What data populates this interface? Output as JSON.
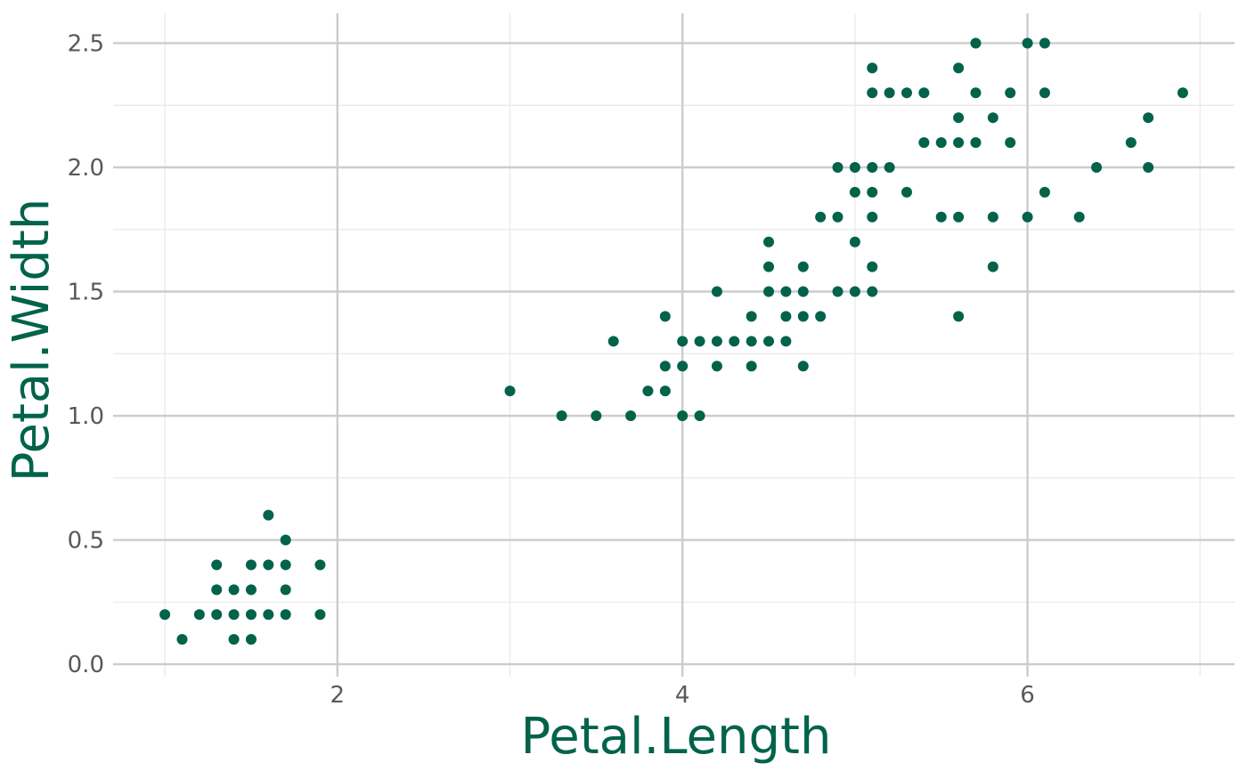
{
  "chart_data": {
    "type": "scatter",
    "xlabel": "Petal.Length",
    "ylabel": "Petal.Width",
    "xlim": [
      0.7,
      7.2
    ],
    "ylim": [
      -0.05,
      2.62
    ],
    "x_ticks": [
      2,
      4,
      6
    ],
    "x_tick_labels": [
      "2",
      "4",
      "6"
    ],
    "x_minor_ticks": [
      1,
      3,
      5,
      7
    ],
    "y_ticks": [
      0.0,
      0.5,
      1.0,
      1.5,
      2.0,
      2.5
    ],
    "y_tick_labels": [
      "0.0",
      "0.5",
      "1.0",
      "1.5",
      "2.0",
      "2.5"
    ],
    "y_minor_ticks": [
      0.25,
      0.75,
      1.25,
      1.75,
      2.25
    ],
    "grid": true,
    "legend": "none",
    "colors": {
      "points": "#02634a",
      "axis_title": "#02634a",
      "tick_label": "#595959",
      "major_grid": "#cccccc",
      "minor_grid": "#e8e8e8"
    },
    "points": [
      [
        1.0,
        0.2
      ],
      [
        1.1,
        0.1
      ],
      [
        1.2,
        0.2
      ],
      [
        1.3,
        0.2
      ],
      [
        1.3,
        0.3
      ],
      [
        1.3,
        0.4
      ],
      [
        1.4,
        0.1
      ],
      [
        1.4,
        0.2
      ],
      [
        1.4,
        0.3
      ],
      [
        1.5,
        0.1
      ],
      [
        1.5,
        0.2
      ],
      [
        1.5,
        0.3
      ],
      [
        1.5,
        0.4
      ],
      [
        1.6,
        0.2
      ],
      [
        1.6,
        0.4
      ],
      [
        1.6,
        0.6
      ],
      [
        1.7,
        0.2
      ],
      [
        1.7,
        0.3
      ],
      [
        1.7,
        0.4
      ],
      [
        1.7,
        0.5
      ],
      [
        1.9,
        0.2
      ],
      [
        1.9,
        0.4
      ],
      [
        3.0,
        1.1
      ],
      [
        3.3,
        1.0
      ],
      [
        3.5,
        1.0
      ],
      [
        3.6,
        1.3
      ],
      [
        3.7,
        1.0
      ],
      [
        3.8,
        1.1
      ],
      [
        3.9,
        1.1
      ],
      [
        3.9,
        1.2
      ],
      [
        3.9,
        1.4
      ],
      [
        4.0,
        1.0
      ],
      [
        4.0,
        1.2
      ],
      [
        4.0,
        1.3
      ],
      [
        4.1,
        1.0
      ],
      [
        4.1,
        1.3
      ],
      [
        4.2,
        1.2
      ],
      [
        4.2,
        1.3
      ],
      [
        4.2,
        1.5
      ],
      [
        4.3,
        1.3
      ],
      [
        4.4,
        1.2
      ],
      [
        4.4,
        1.3
      ],
      [
        4.4,
        1.4
      ],
      [
        4.5,
        1.3
      ],
      [
        4.5,
        1.5
      ],
      [
        4.5,
        1.6
      ],
      [
        4.5,
        1.7
      ],
      [
        4.6,
        1.3
      ],
      [
        4.6,
        1.4
      ],
      [
        4.6,
        1.5
      ],
      [
        4.7,
        1.2
      ],
      [
        4.7,
        1.4
      ],
      [
        4.7,
        1.5
      ],
      [
        4.7,
        1.6
      ],
      [
        4.8,
        1.4
      ],
      [
        4.8,
        1.8
      ],
      [
        4.9,
        1.5
      ],
      [
        4.9,
        1.8
      ],
      [
        4.9,
        2.0
      ],
      [
        5.0,
        1.5
      ],
      [
        5.0,
        1.7
      ],
      [
        5.0,
        1.9
      ],
      [
        5.0,
        2.0
      ],
      [
        5.1,
        1.5
      ],
      [
        5.1,
        1.6
      ],
      [
        5.1,
        1.8
      ],
      [
        5.1,
        1.9
      ],
      [
        5.1,
        2.0
      ],
      [
        5.1,
        2.3
      ],
      [
        5.1,
        2.4
      ],
      [
        5.2,
        2.0
      ],
      [
        5.2,
        2.3
      ],
      [
        5.3,
        1.9
      ],
      [
        5.3,
        2.3
      ],
      [
        5.4,
        2.1
      ],
      [
        5.4,
        2.3
      ],
      [
        5.5,
        1.8
      ],
      [
        5.5,
        2.1
      ],
      [
        5.6,
        1.4
      ],
      [
        5.6,
        1.8
      ],
      [
        5.6,
        2.1
      ],
      [
        5.6,
        2.2
      ],
      [
        5.6,
        2.4
      ],
      [
        5.7,
        2.1
      ],
      [
        5.7,
        2.3
      ],
      [
        5.7,
        2.5
      ],
      [
        5.8,
        1.6
      ],
      [
        5.8,
        1.8
      ],
      [
        5.8,
        2.2
      ],
      [
        5.9,
        2.1
      ],
      [
        5.9,
        2.3
      ],
      [
        6.0,
        1.8
      ],
      [
        6.0,
        2.5
      ],
      [
        6.1,
        1.9
      ],
      [
        6.1,
        2.3
      ],
      [
        6.1,
        2.5
      ],
      [
        6.3,
        1.8
      ],
      [
        6.4,
        2.0
      ],
      [
        6.6,
        2.1
      ],
      [
        6.7,
        2.0
      ],
      [
        6.7,
        2.2
      ],
      [
        6.9,
        2.3
      ]
    ]
  }
}
